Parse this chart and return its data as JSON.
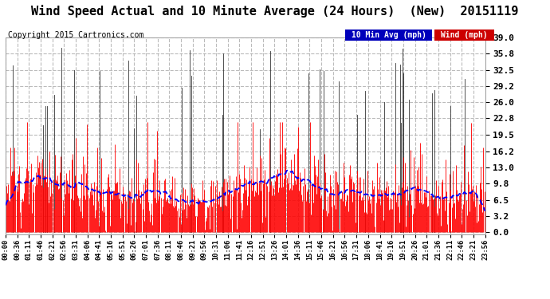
{
  "title": "Wind Speed Actual and 10 Minute Average (24 Hours)  (New)  20151119",
  "copyright": "Copyright 2015 Cartronics.com",
  "legend_10min_label": "10 Min Avg (mph)",
  "legend_wind_label": "Wind (mph)",
  "legend_10min_bg": "#0000bb",
  "legend_wind_bg": "#cc0000",
  "yticks": [
    0.0,
    3.2,
    6.5,
    9.8,
    13.0,
    16.2,
    19.5,
    22.8,
    26.0,
    29.2,
    32.5,
    35.8,
    39.0
  ],
  "ylim": [
    -0.5,
    39.0
  ],
  "n_points": 576,
  "wind_color": "#ff0000",
  "avg_color": "#0000ff",
  "spike_color": "#333333",
  "background_color": "#ffffff",
  "plot_bg_color": "#ffffff",
  "grid_color": "#bbbbbb",
  "title_fontsize": 11,
  "copyright_fontsize": 7,
  "tick_fontsize": 8,
  "legend_fontsize": 7
}
